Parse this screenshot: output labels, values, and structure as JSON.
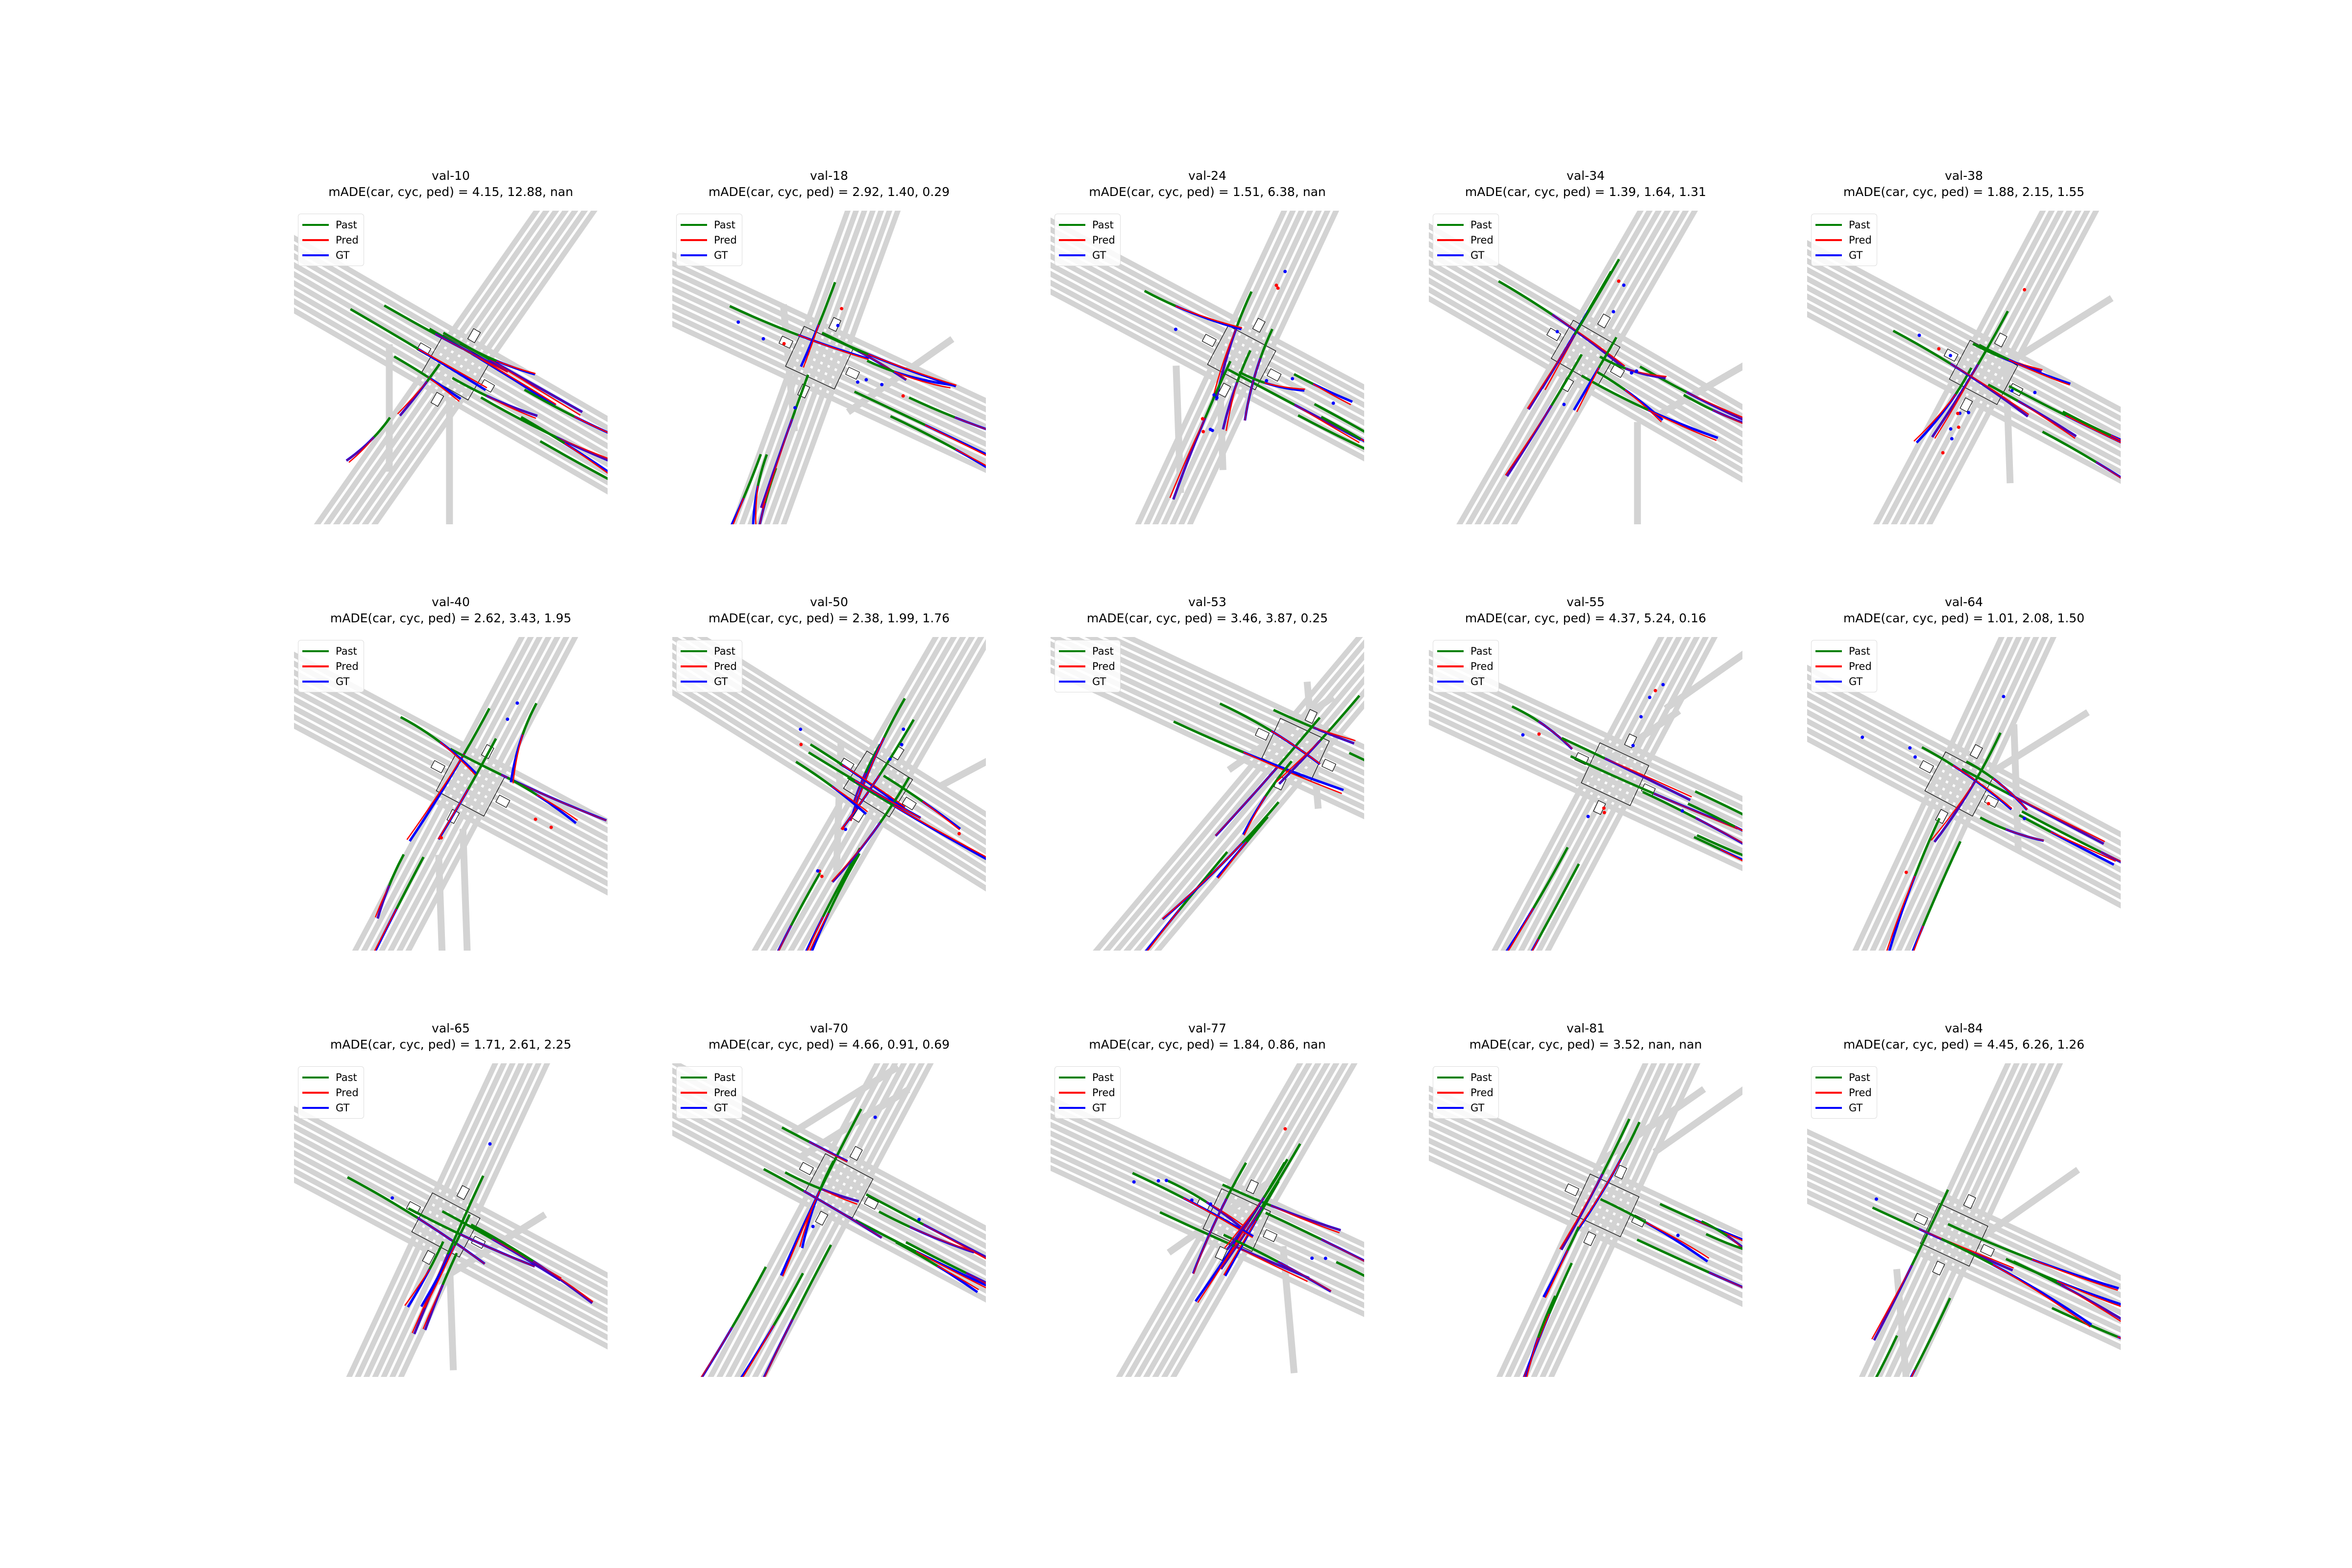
{
  "legend": [
    {
      "label": "Past",
      "color": "#008000"
    },
    {
      "label": "Pred",
      "color": "#ff0000"
    },
    {
      "label": "GT",
      "color": "#0000ff"
    }
  ],
  "colors": {
    "road": "#d3d3d3",
    "overlap": "#800080",
    "crosswalk_edge": "#000000"
  },
  "panels": [
    {
      "name": "val-10",
      "metric": "mADE(car, cyc, ped) = 4.15, 12.88, nan"
    },
    {
      "name": "val-18",
      "metric": "mADE(car, cyc, ped) = 2.92, 1.40, 0.29"
    },
    {
      "name": "val-24",
      "metric": "mADE(car, cyc, ped) = 1.51, 6.38, nan"
    },
    {
      "name": "val-34",
      "metric": "mADE(car, cyc, ped) = 1.39, 1.64, 1.31"
    },
    {
      "name": "val-38",
      "metric": "mADE(car, cyc, ped) = 1.88, 2.15, 1.55"
    },
    {
      "name": "val-40",
      "metric": "mADE(car, cyc, ped) = 2.62, 3.43, 1.95"
    },
    {
      "name": "val-50",
      "metric": "mADE(car, cyc, ped) = 2.38, 1.99, 1.76"
    },
    {
      "name": "val-53",
      "metric": "mADE(car, cyc, ped) = 3.46, 3.87, 0.25"
    },
    {
      "name": "val-55",
      "metric": "mADE(car, cyc, ped) = 4.37, 5.24, 0.16"
    },
    {
      "name": "val-64",
      "metric": "mADE(car, cyc, ped) = 1.01, 2.08, 1.50"
    },
    {
      "name": "val-65",
      "metric": "mADE(car, cyc, ped) = 1.71, 2.61, 2.25"
    },
    {
      "name": "val-70",
      "metric": "mADE(car, cyc, ped) = 4.66, 0.91, 0.69"
    },
    {
      "name": "val-77",
      "metric": "mADE(car, cyc, ped) = 1.84, 0.86, nan"
    },
    {
      "name": "val-81",
      "metric": "mADE(car, cyc, ped) = 3.52, nan, nan"
    },
    {
      "name": "val-84",
      "metric": "mADE(car, cyc, ped) = 4.45, 6.26, 1.26"
    }
  ]
}
